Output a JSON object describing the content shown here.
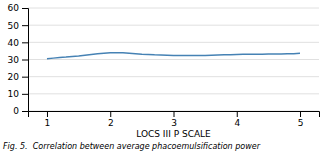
{
  "chart_data": {
    "type": "line",
    "x": [
      1.0,
      1.1,
      1.2,
      1.3,
      1.4,
      1.5,
      1.6,
      1.7,
      1.8,
      1.9,
      2.0,
      2.1,
      2.2,
      2.3,
      2.4,
      2.5,
      2.6,
      2.7,
      2.8,
      2.9,
      3.0,
      3.1,
      3.2,
      3.3,
      3.4,
      3.5,
      3.6,
      3.7,
      3.8,
      3.9,
      4.0,
      4.1,
      4.2,
      4.3,
      4.4,
      4.5,
      4.6,
      4.7,
      4.8,
      4.9,
      5.0
    ],
    "y": [
      30.5,
      30.8,
      31.1,
      31.4,
      31.8,
      32.1,
      32.5,
      32.9,
      33.3,
      33.6,
      33.9,
      34.0,
      33.9,
      33.7,
      33.4,
      33.1,
      32.9,
      32.7,
      32.6,
      32.5,
      32.4,
      32.3,
      32.3,
      32.3,
      32.4,
      32.4,
      32.5,
      32.6,
      32.7,
      32.8,
      32.9,
      33.0,
      33.0,
      33.1,
      33.1,
      33.2,
      33.2,
      33.2,
      33.3,
      33.4,
      33.7
    ],
    "xlim": [
      0.7,
      5.3
    ],
    "ylim": [
      0,
      60
    ],
    "xticks": [
      1,
      2,
      3,
      4,
      5
    ],
    "yticks": [
      0,
      10,
      20,
      30,
      40,
      50,
      60
    ],
    "xlabel": "LOCS III P SCALE",
    "caption": "Fig. 5.  Correlation between average phacoemulsification power",
    "grid": true
  }
}
